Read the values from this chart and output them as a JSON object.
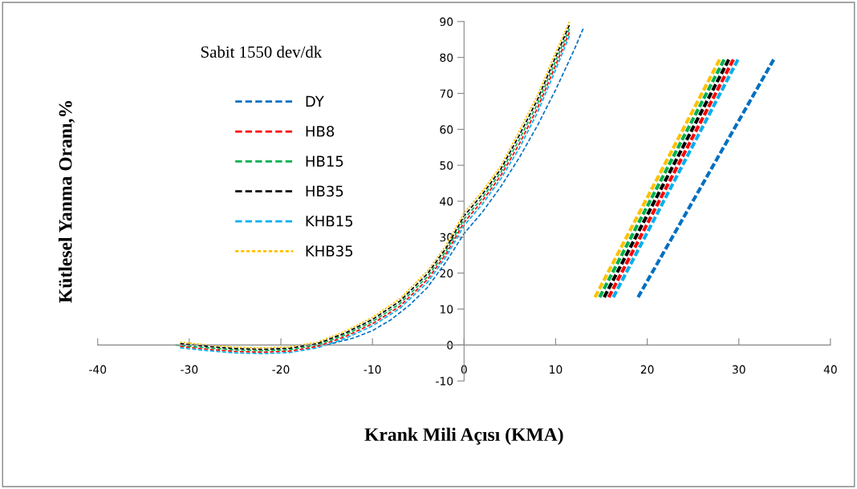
{
  "chart_data": {
    "type": "line",
    "xlabel": "Krank Mili Açısı (KMA)",
    "ylabel": "Kütlesel Yanma Oranı,%",
    "annotations": [
      "Sabit 1550 dev/dk"
    ],
    "xlim": [
      -40,
      40
    ],
    "xticks": [
      -40,
      -30,
      -20,
      -10,
      0,
      10,
      20,
      30,
      40
    ],
    "ylim": [
      -10,
      90
    ],
    "yticks": [
      -10,
      0,
      10,
      20,
      30,
      40,
      50,
      60,
      70,
      80,
      90
    ],
    "grid": false,
    "legend": "top left",
    "marker": "none",
    "series": [
      {
        "name": "DY",
        "color": "#0070c0",
        "line_style": "dashed",
        "x": [
          -15,
          -12,
          -10,
          -8,
          -6,
          -4,
          -2,
          0,
          2,
          4,
          6,
          8,
          10,
          12,
          13,
          16,
          19,
          33.8
        ],
        "values": [
          0,
          2,
          4,
          7,
          11,
          16,
          23,
          31,
          37,
          44,
          52,
          61,
          71,
          82,
          88,
          null,
          13.3,
          79.4
        ]
      },
      {
        "name": "HB8",
        "color": "#ff0000",
        "line_style": "dashed",
        "x": [
          -31,
          -28,
          -25,
          -22,
          -19,
          -16,
          -13,
          -10,
          -7,
          -4,
          -2,
          0,
          2,
          4,
          6,
          8,
          10,
          11.5,
          13,
          15.8,
          29.4
        ],
        "values": [
          -0.4,
          -1.2,
          -1.8,
          -2.0,
          -1.7,
          -0.4,
          2.3,
          5.9,
          10.8,
          18.2,
          25.2,
          34.1,
          40.1,
          47.1,
          55.8,
          65.8,
          77.8,
          87,
          null,
          13.3,
          79.4
        ]
      },
      {
        "name": "HB15",
        "color": "#00b050",
        "line_style": "dashed",
        "x": [
          -31.5,
          -28,
          -25,
          -22,
          -19,
          -16,
          -13,
          -10,
          -7,
          -4,
          -2,
          0,
          2,
          4,
          6,
          8,
          10,
          11.5,
          13,
          14.8,
          28.4
        ],
        "values": [
          0,
          -0.8,
          -1.4,
          -1.6,
          -1.3,
          0,
          2.8,
          6.5,
          11.5,
          19,
          26,
          35,
          41,
          48,
          57,
          67,
          79,
          88,
          null,
          13.3,
          79.4
        ]
      },
      {
        "name": "HB35",
        "color": "#000000",
        "line_style": "dashed",
        "x": [
          -31,
          -28,
          -25,
          -22,
          -19,
          -16,
          -13,
          -10,
          -7,
          -4,
          -2,
          0,
          2,
          4,
          6,
          8,
          10,
          11.5,
          13,
          15.3,
          28.9
        ],
        "values": [
          0.4,
          -0.4,
          -1.0,
          -1.2,
          -0.9,
          0.4,
          3.3,
          7.1,
          12.2,
          19.8,
          26.8,
          35.9,
          41.9,
          48.9,
          58.2,
          68.2,
          80.2,
          89,
          null,
          13.3,
          79.4
        ]
      },
      {
        "name": "KHB15",
        "color": "#00b0f0",
        "line_style": "dashed",
        "x": [
          -31,
          -28,
          -25,
          -22,
          -19,
          -16,
          -13,
          -10,
          -7,
          -4,
          -2,
          0,
          2,
          4,
          6,
          8,
          10,
          11.5,
          13,
          16.3,
          29.9
        ],
        "values": [
          -0.8,
          -1.6,
          -2.2,
          -2.4,
          -2.1,
          -0.8,
          1.8,
          5.3,
          10.2,
          17.4,
          24.4,
          33.2,
          39.2,
          46.2,
          54.6,
          64.6,
          76.6,
          86,
          null,
          13.3,
          79.4
        ]
      },
      {
        "name": "KHB35",
        "color": "#ffc000",
        "line_style": "dotted",
        "x": [
          -31,
          -28,
          -25,
          -22,
          -19,
          -16,
          -13,
          -10,
          -7,
          -4,
          -2,
          0,
          2,
          4,
          6,
          8,
          10,
          11.5,
          13,
          14.3,
          27.9
        ],
        "values": [
          0.8,
          0,
          -0.6,
          -0.8,
          -0.5,
          0.8,
          3.8,
          7.7,
          12.9,
          20.6,
          27.6,
          36.8,
          42.8,
          49.8,
          59.4,
          69.4,
          81.4,
          90,
          null,
          13.3,
          79.4
        ]
      }
    ]
  }
}
